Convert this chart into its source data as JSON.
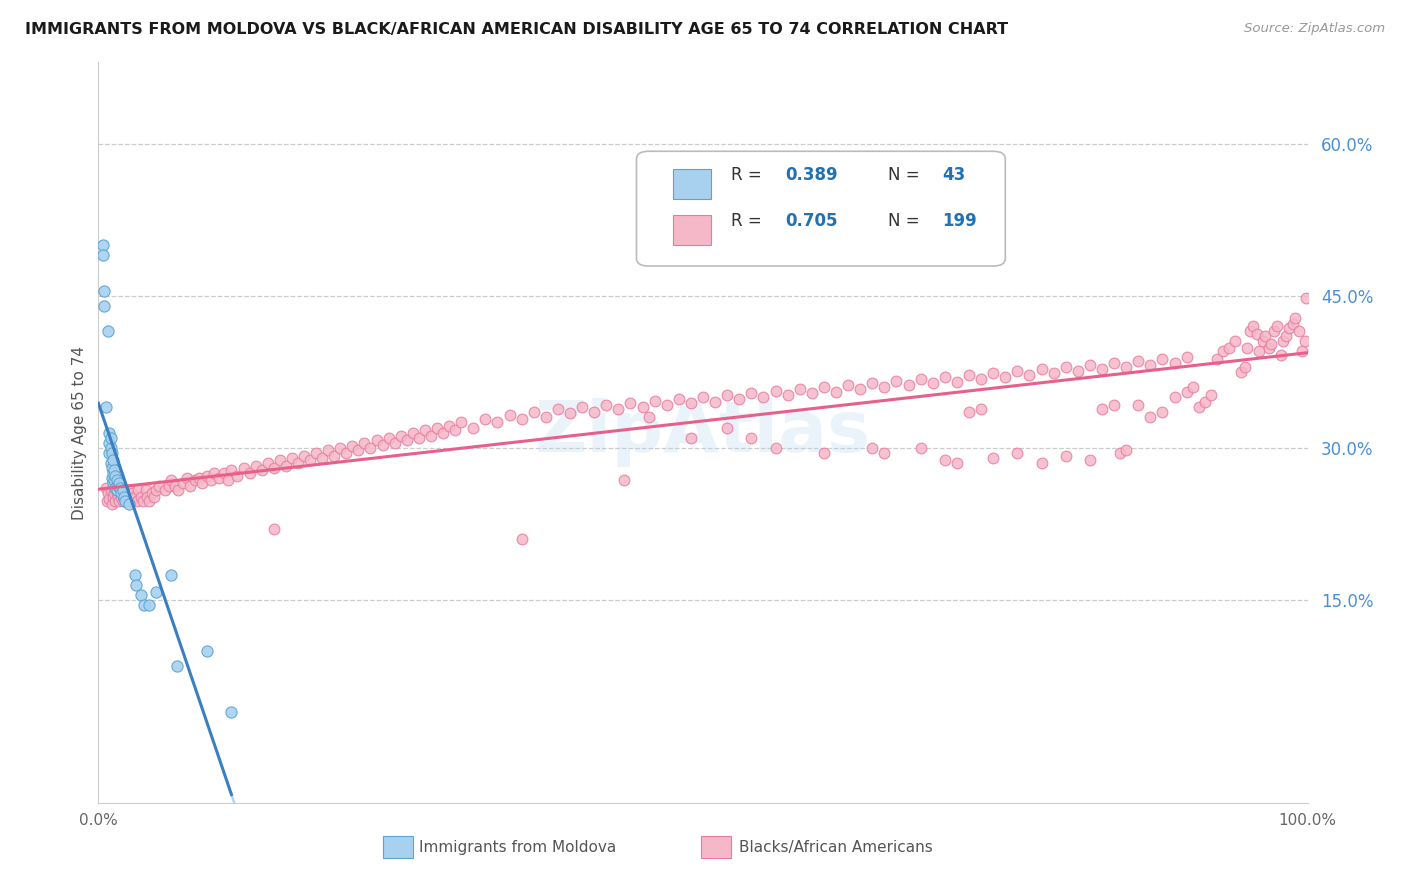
{
  "title": "IMMIGRANTS FROM MOLDOVA VS BLACK/AFRICAN AMERICAN DISABILITY AGE 65 TO 74 CORRELATION CHART",
  "source": "Source: ZipAtlas.com",
  "ylabel": "Disability Age 65 to 74",
  "legend_label1": "Immigrants from Moldova",
  "legend_label2": "Blacks/African Americans",
  "legend_R1": "0.389",
  "legend_N1": "43",
  "legend_R2": "0.705",
  "legend_N2": "199",
  "color_blue": "#a8d1f0",
  "color_pink": "#f5b8c8",
  "color_blue_dark": "#5ba3d0",
  "color_pink_dark": "#e87aa0",
  "color_line_blue_solid": "#3a7fc1",
  "color_line_blue_dash": "#90bfe0",
  "color_line_pink": "#e8608a",
  "color_tick_right": "#4a90d9",
  "watermark": "ZipAtlas",
  "xlim": [
    0.0,
    1.0
  ],
  "ylim": [
    -0.05,
    0.68
  ],
  "y_tick_positions": [
    0.15,
    0.3,
    0.45,
    0.6
  ],
  "y_tick_labels": [
    "15.0%",
    "30.0%",
    "45.0%",
    "60.0%"
  ],
  "blue_points": [
    [
      0.004,
      0.5
    ],
    [
      0.004,
      0.49
    ],
    [
      0.005,
      0.455
    ],
    [
      0.005,
      0.44
    ],
    [
      0.006,
      0.34
    ],
    [
      0.008,
      0.415
    ],
    [
      0.009,
      0.305
    ],
    [
      0.009,
      0.295
    ],
    [
      0.009,
      0.315
    ],
    [
      0.01,
      0.3
    ],
    [
      0.01,
      0.31
    ],
    [
      0.01,
      0.285
    ],
    [
      0.011,
      0.295
    ],
    [
      0.011,
      0.28
    ],
    [
      0.011,
      0.27
    ],
    [
      0.012,
      0.288
    ],
    [
      0.012,
      0.275
    ],
    [
      0.012,
      0.265
    ],
    [
      0.013,
      0.278
    ],
    [
      0.013,
      0.268
    ],
    [
      0.014,
      0.272
    ],
    [
      0.014,
      0.26
    ],
    [
      0.015,
      0.268
    ],
    [
      0.015,
      0.258
    ],
    [
      0.016,
      0.262
    ],
    [
      0.017,
      0.265
    ],
    [
      0.018,
      0.26
    ],
    [
      0.019,
      0.255
    ],
    [
      0.02,
      0.258
    ],
    [
      0.021,
      0.252
    ],
    [
      0.022,
      0.248
    ],
    [
      0.025,
      0.245
    ],
    [
      0.03,
      0.175
    ],
    [
      0.031,
      0.165
    ],
    [
      0.035,
      0.155
    ],
    [
      0.038,
      0.145
    ],
    [
      0.042,
      0.145
    ],
    [
      0.048,
      0.158
    ],
    [
      0.06,
      0.175
    ],
    [
      0.065,
      0.085
    ],
    [
      0.09,
      0.1
    ],
    [
      0.11,
      0.04
    ]
  ],
  "pink_points": [
    [
      0.006,
      0.26
    ],
    [
      0.007,
      0.248
    ],
    [
      0.008,
      0.255
    ],
    [
      0.009,
      0.25
    ],
    [
      0.01,
      0.258
    ],
    [
      0.011,
      0.245
    ],
    [
      0.012,
      0.252
    ],
    [
      0.013,
      0.255
    ],
    [
      0.014,
      0.248
    ],
    [
      0.015,
      0.255
    ],
    [
      0.016,
      0.252
    ],
    [
      0.017,
      0.248
    ],
    [
      0.018,
      0.258
    ],
    [
      0.019,
      0.252
    ],
    [
      0.02,
      0.248
    ],
    [
      0.021,
      0.255
    ],
    [
      0.022,
      0.252
    ],
    [
      0.023,
      0.248
    ],
    [
      0.025,
      0.258
    ],
    [
      0.026,
      0.252
    ],
    [
      0.027,
      0.248
    ],
    [
      0.028,
      0.255
    ],
    [
      0.03,
      0.252
    ],
    [
      0.032,
      0.248
    ],
    [
      0.033,
      0.258
    ],
    [
      0.035,
      0.252
    ],
    [
      0.037,
      0.248
    ],
    [
      0.039,
      0.258
    ],
    [
      0.04,
      0.252
    ],
    [
      0.042,
      0.248
    ],
    [
      0.044,
      0.255
    ],
    [
      0.046,
      0.252
    ],
    [
      0.048,
      0.258
    ],
    [
      0.05,
      0.262
    ],
    [
      0.055,
      0.258
    ],
    [
      0.058,
      0.262
    ],
    [
      0.06,
      0.268
    ],
    [
      0.063,
      0.262
    ],
    [
      0.066,
      0.258
    ],
    [
      0.07,
      0.265
    ],
    [
      0.073,
      0.27
    ],
    [
      0.076,
      0.262
    ],
    [
      0.08,
      0.268
    ],
    [
      0.083,
      0.27
    ],
    [
      0.086,
      0.265
    ],
    [
      0.09,
      0.272
    ],
    [
      0.093,
      0.268
    ],
    [
      0.096,
      0.275
    ],
    [
      0.1,
      0.27
    ],
    [
      0.104,
      0.275
    ],
    [
      0.107,
      0.268
    ],
    [
      0.11,
      0.278
    ],
    [
      0.115,
      0.272
    ],
    [
      0.12,
      0.28
    ],
    [
      0.125,
      0.275
    ],
    [
      0.13,
      0.282
    ],
    [
      0.135,
      0.278
    ],
    [
      0.14,
      0.285
    ],
    [
      0.145,
      0.28
    ],
    [
      0.15,
      0.288
    ],
    [
      0.155,
      0.282
    ],
    [
      0.16,
      0.29
    ],
    [
      0.165,
      0.285
    ],
    [
      0.17,
      0.292
    ],
    [
      0.175,
      0.288
    ],
    [
      0.18,
      0.295
    ],
    [
      0.185,
      0.29
    ],
    [
      0.19,
      0.298
    ],
    [
      0.195,
      0.292
    ],
    [
      0.2,
      0.3
    ],
    [
      0.205,
      0.295
    ],
    [
      0.21,
      0.302
    ],
    [
      0.215,
      0.298
    ],
    [
      0.22,
      0.305
    ],
    [
      0.225,
      0.3
    ],
    [
      0.23,
      0.308
    ],
    [
      0.235,
      0.303
    ],
    [
      0.24,
      0.31
    ],
    [
      0.245,
      0.305
    ],
    [
      0.25,
      0.312
    ],
    [
      0.255,
      0.308
    ],
    [
      0.26,
      0.315
    ],
    [
      0.265,
      0.31
    ],
    [
      0.27,
      0.318
    ],
    [
      0.275,
      0.312
    ],
    [
      0.28,
      0.32
    ],
    [
      0.285,
      0.315
    ],
    [
      0.29,
      0.322
    ],
    [
      0.295,
      0.318
    ],
    [
      0.3,
      0.325
    ],
    [
      0.31,
      0.32
    ],
    [
      0.32,
      0.328
    ],
    [
      0.33,
      0.325
    ],
    [
      0.34,
      0.332
    ],
    [
      0.35,
      0.328
    ],
    [
      0.36,
      0.335
    ],
    [
      0.37,
      0.33
    ],
    [
      0.38,
      0.338
    ],
    [
      0.39,
      0.334
    ],
    [
      0.4,
      0.34
    ],
    [
      0.41,
      0.335
    ],
    [
      0.42,
      0.342
    ],
    [
      0.43,
      0.338
    ],
    [
      0.44,
      0.344
    ],
    [
      0.45,
      0.34
    ],
    [
      0.46,
      0.346
    ],
    [
      0.47,
      0.342
    ],
    [
      0.48,
      0.348
    ],
    [
      0.49,
      0.344
    ],
    [
      0.5,
      0.35
    ],
    [
      0.51,
      0.345
    ],
    [
      0.52,
      0.352
    ],
    [
      0.53,
      0.348
    ],
    [
      0.54,
      0.354
    ],
    [
      0.55,
      0.35
    ],
    [
      0.56,
      0.356
    ],
    [
      0.57,
      0.352
    ],
    [
      0.58,
      0.358
    ],
    [
      0.59,
      0.354
    ],
    [
      0.6,
      0.36
    ],
    [
      0.61,
      0.355
    ],
    [
      0.62,
      0.362
    ],
    [
      0.63,
      0.358
    ],
    [
      0.64,
      0.364
    ],
    [
      0.65,
      0.36
    ],
    [
      0.66,
      0.366
    ],
    [
      0.67,
      0.362
    ],
    [
      0.68,
      0.368
    ],
    [
      0.69,
      0.364
    ],
    [
      0.7,
      0.37
    ],
    [
      0.71,
      0.365
    ],
    [
      0.72,
      0.372
    ],
    [
      0.73,
      0.368
    ],
    [
      0.74,
      0.374
    ],
    [
      0.75,
      0.37
    ],
    [
      0.76,
      0.376
    ],
    [
      0.77,
      0.372
    ],
    [
      0.78,
      0.378
    ],
    [
      0.79,
      0.374
    ],
    [
      0.8,
      0.38
    ],
    [
      0.81,
      0.376
    ],
    [
      0.82,
      0.382
    ],
    [
      0.83,
      0.378
    ],
    [
      0.84,
      0.384
    ],
    [
      0.85,
      0.38
    ],
    [
      0.86,
      0.386
    ],
    [
      0.87,
      0.382
    ],
    [
      0.88,
      0.388
    ],
    [
      0.89,
      0.384
    ],
    [
      0.9,
      0.39
    ],
    [
      0.145,
      0.22
    ],
    [
      0.35,
      0.21
    ],
    [
      0.435,
      0.268
    ],
    [
      0.455,
      0.33
    ],
    [
      0.49,
      0.31
    ],
    [
      0.52,
      0.32
    ],
    [
      0.54,
      0.31
    ],
    [
      0.56,
      0.3
    ],
    [
      0.6,
      0.295
    ],
    [
      0.64,
      0.3
    ],
    [
      0.65,
      0.295
    ],
    [
      0.68,
      0.3
    ],
    [
      0.7,
      0.288
    ],
    [
      0.71,
      0.285
    ],
    [
      0.72,
      0.335
    ],
    [
      0.73,
      0.338
    ],
    [
      0.74,
      0.29
    ],
    [
      0.76,
      0.295
    ],
    [
      0.78,
      0.285
    ],
    [
      0.8,
      0.292
    ],
    [
      0.82,
      0.288
    ],
    [
      0.83,
      0.338
    ],
    [
      0.84,
      0.342
    ],
    [
      0.845,
      0.295
    ],
    [
      0.85,
      0.298
    ],
    [
      0.86,
      0.342
    ],
    [
      0.87,
      0.33
    ],
    [
      0.88,
      0.335
    ],
    [
      0.89,
      0.35
    ],
    [
      0.9,
      0.355
    ],
    [
      0.905,
      0.36
    ],
    [
      0.91,
      0.34
    ],
    [
      0.915,
      0.345
    ],
    [
      0.92,
      0.352
    ],
    [
      0.925,
      0.388
    ],
    [
      0.93,
      0.395
    ],
    [
      0.935,
      0.398
    ],
    [
      0.94,
      0.405
    ],
    [
      0.945,
      0.375
    ],
    [
      0.948,
      0.38
    ],
    [
      0.95,
      0.398
    ],
    [
      0.952,
      0.415
    ],
    [
      0.955,
      0.42
    ],
    [
      0.958,
      0.412
    ],
    [
      0.96,
      0.395
    ],
    [
      0.963,
      0.405
    ],
    [
      0.965,
      0.41
    ],
    [
      0.968,
      0.398
    ],
    [
      0.97,
      0.402
    ],
    [
      0.972,
      0.415
    ],
    [
      0.975,
      0.42
    ],
    [
      0.978,
      0.392
    ],
    [
      0.98,
      0.405
    ],
    [
      0.982,
      0.41
    ],
    [
      0.985,
      0.418
    ],
    [
      0.988,
      0.422
    ],
    [
      0.99,
      0.428
    ],
    [
      0.993,
      0.415
    ],
    [
      0.995,
      0.395
    ],
    [
      0.998,
      0.405
    ],
    [
      0.999,
      0.448
    ]
  ]
}
